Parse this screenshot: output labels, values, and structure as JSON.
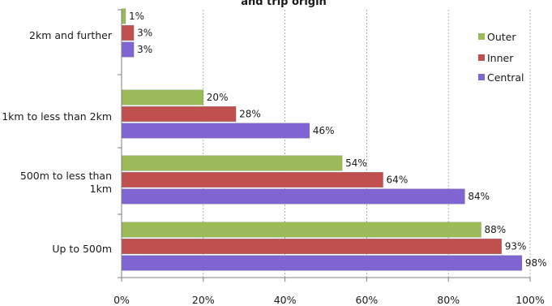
{
  "chart_data": {
    "type": "bar",
    "orientation": "horizontal",
    "title": "and trip origin",
    "categories": [
      "2km and further",
      "1km to less than 2km",
      "500m to less than 1km",
      "Up to 500m"
    ],
    "category_lines": [
      [
        "2km and further"
      ],
      [
        "1km to less than 2km"
      ],
      [
        "500m to less than",
        "1km"
      ],
      [
        "Up to 500m"
      ]
    ],
    "series": [
      {
        "name": "Outer",
        "color": "#9bbb59",
        "values": [
          1,
          20,
          54,
          88
        ],
        "labels": [
          "1%",
          "20%",
          "54%",
          "88%"
        ]
      },
      {
        "name": "Inner",
        "color": "#c0504d",
        "values": [
          3,
          28,
          64,
          93
        ],
        "labels": [
          "3%",
          "28%",
          "64%",
          "93%"
        ]
      },
      {
        "name": "Central",
        "color": "#8064d2",
        "values": [
          3,
          46,
          84,
          98
        ],
        "labels": [
          "3%",
          "46%",
          "84%",
          "98%"
        ]
      }
    ],
    "xlim": [
      0,
      100
    ],
    "xticks": [
      0,
      20,
      40,
      60,
      80,
      100
    ],
    "xtick_labels": [
      "0%",
      "20%",
      "40%",
      "60%",
      "80%",
      "100%"
    ],
    "legend_position": "right",
    "grid": true
  }
}
